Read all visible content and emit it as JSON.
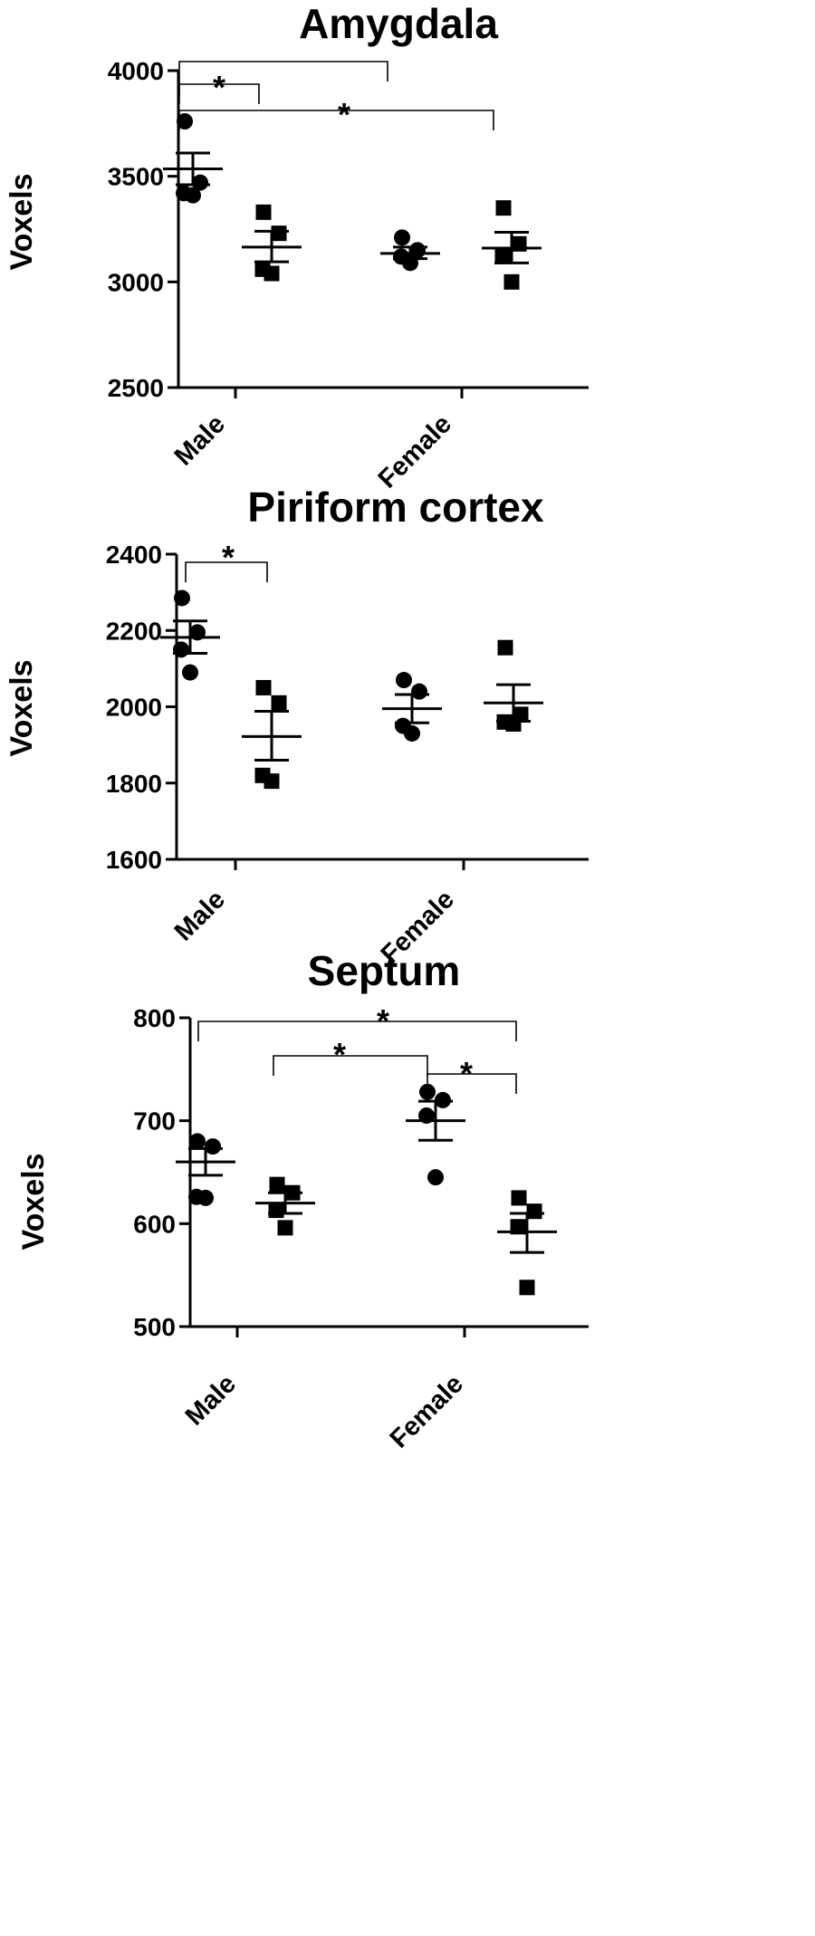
{
  "chart_data": [
    {
      "type": "scatter",
      "title": "Amygdala",
      "ylabel": "Voxels",
      "ylim": [
        2500,
        4000
      ],
      "yticks": [
        "2500",
        "3000",
        "3500",
        "4000"
      ],
      "groups": [
        "Male",
        "Female"
      ],
      "marker_colors": {
        "circle": "#000000",
        "square": "#000000"
      },
      "series": [
        {
          "group": "Male",
          "marker": "circle",
          "values": [
            3760,
            3470,
            3420,
            3410
          ],
          "mean": 3535,
          "sem_low": 3460,
          "sem_high": 3610
        },
        {
          "group": "Male",
          "marker": "square",
          "values": [
            3330,
            3230,
            3060,
            3040
          ],
          "mean": 3165,
          "sem_low": 3095,
          "sem_high": 3240
        },
        {
          "group": "Female",
          "marker": "circle",
          "values": [
            3210,
            3150,
            3120,
            3090
          ],
          "mean": 3135,
          "sem_low": 3110,
          "sem_high": 3165
        },
        {
          "group": "Female",
          "marker": "square",
          "values": [
            3350,
            3180,
            3120,
            3000
          ],
          "mean": 3160,
          "sem_low": 3090,
          "sem_high": 3235
        }
      ],
      "significance": [
        {
          "from": 0,
          "to": 1,
          "label": "*"
        },
        {
          "from": 0,
          "to": 2,
          "label": "*"
        },
        {
          "from": 0,
          "to": 3,
          "label": "*"
        }
      ]
    },
    {
      "type": "scatter",
      "title": "Piriform cortex",
      "ylabel": "Voxels",
      "ylim": [
        1600,
        2400
      ],
      "yticks": [
        "1600",
        "1800",
        "2000",
        "2200",
        "2400"
      ],
      "groups": [
        "Male",
        "Female"
      ],
      "marker_colors": {
        "circle": "#000000",
        "square": "#000000"
      },
      "series": [
        {
          "group": "Male",
          "marker": "circle",
          "values": [
            2285,
            2195,
            2150,
            2090
          ],
          "mean": 2182,
          "sem_low": 2140,
          "sem_high": 2225
        },
        {
          "group": "Male",
          "marker": "square",
          "values": [
            2050,
            2010,
            1820,
            1805
          ],
          "mean": 1922,
          "sem_low": 1860,
          "sem_high": 1988
        },
        {
          "group": "Female",
          "marker": "circle",
          "values": [
            2070,
            2040,
            1950,
            1930
          ],
          "mean": 1995,
          "sem_low": 1958,
          "sem_high": 2032
        },
        {
          "group": "Female",
          "marker": "square",
          "values": [
            2155,
            1980,
            1960,
            1955
          ],
          "mean": 2010,
          "sem_low": 1962,
          "sem_high": 2058
        }
      ],
      "significance": [
        {
          "from": 0,
          "to": 1,
          "label": "*"
        }
      ]
    },
    {
      "type": "scatter",
      "title": "Septum",
      "ylabel": "Voxels",
      "ylim": [
        500,
        800
      ],
      "yticks": [
        "500",
        "600",
        "700",
        "800"
      ],
      "groups": [
        "Male",
        "Female"
      ],
      "marker_colors": {
        "circle": "#000000",
        "square": "#000000"
      },
      "series": [
        {
          "group": "Male",
          "marker": "circle",
          "values": [
            680,
            675,
            626,
            625
          ],
          "mean": 660,
          "sem_low": 647,
          "sem_high": 673
        },
        {
          "group": "Male",
          "marker": "square",
          "values": [
            638,
            630,
            613,
            596
          ],
          "mean": 620,
          "sem_low": 610,
          "sem_high": 630
        },
        {
          "group": "Female",
          "marker": "circle",
          "values": [
            728,
            720,
            705,
            645
          ],
          "mean": 700,
          "sem_low": 681,
          "sem_high": 719
        },
        {
          "group": "Female",
          "marker": "square",
          "values": [
            625,
            612,
            597,
            538
          ],
          "mean": 592,
          "sem_low": 572,
          "sem_high": 610
        }
      ],
      "significance": [
        {
          "from": 0,
          "to": 3,
          "label": "*"
        },
        {
          "from": 1,
          "to": 2,
          "label": "*"
        },
        {
          "from": 2,
          "to": 3,
          "label": "*"
        }
      ]
    }
  ]
}
